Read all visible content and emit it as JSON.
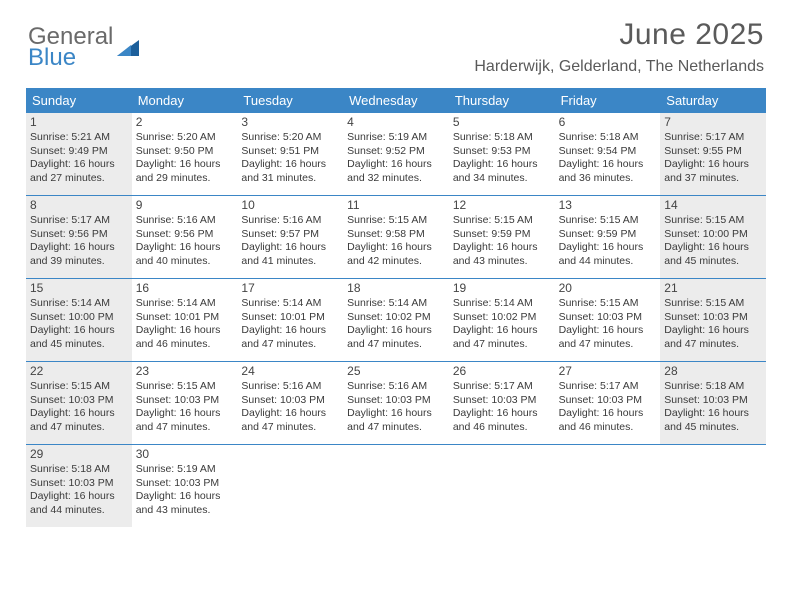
{
  "logo": {
    "general": "General",
    "blue": "Blue"
  },
  "title": "June 2025",
  "location": "Harderwijk, Gelderland, The Netherlands",
  "colors": {
    "header_bg": "#3b86c6",
    "header_text": "#ffffff",
    "shade_bg": "#ececec",
    "border": "#3b86c6",
    "logo_gray": "#6a6a6a",
    "logo_blue": "#3b86c6",
    "text": "#3a3a3a"
  },
  "typography": {
    "title_fontsize": 30,
    "location_fontsize": 16,
    "dayheader_fontsize": 13,
    "cell_fontsize": 10.5,
    "daynum_fontsize": 12
  },
  "dayNames": [
    "Sunday",
    "Monday",
    "Tuesday",
    "Wednesday",
    "Thursday",
    "Friday",
    "Saturday"
  ],
  "weeks": [
    [
      {
        "num": "1",
        "shade": true,
        "sunrise": "Sunrise: 5:21 AM",
        "sunset": "Sunset: 9:49 PM",
        "day1": "Daylight: 16 hours",
        "day2": "and 27 minutes."
      },
      {
        "num": "2",
        "shade": false,
        "sunrise": "Sunrise: 5:20 AM",
        "sunset": "Sunset: 9:50 PM",
        "day1": "Daylight: 16 hours",
        "day2": "and 29 minutes."
      },
      {
        "num": "3",
        "shade": false,
        "sunrise": "Sunrise: 5:20 AM",
        "sunset": "Sunset: 9:51 PM",
        "day1": "Daylight: 16 hours",
        "day2": "and 31 minutes."
      },
      {
        "num": "4",
        "shade": false,
        "sunrise": "Sunrise: 5:19 AM",
        "sunset": "Sunset: 9:52 PM",
        "day1": "Daylight: 16 hours",
        "day2": "and 32 minutes."
      },
      {
        "num": "5",
        "shade": false,
        "sunrise": "Sunrise: 5:18 AM",
        "sunset": "Sunset: 9:53 PM",
        "day1": "Daylight: 16 hours",
        "day2": "and 34 minutes."
      },
      {
        "num": "6",
        "shade": false,
        "sunrise": "Sunrise: 5:18 AM",
        "sunset": "Sunset: 9:54 PM",
        "day1": "Daylight: 16 hours",
        "day2": "and 36 minutes."
      },
      {
        "num": "7",
        "shade": true,
        "sunrise": "Sunrise: 5:17 AM",
        "sunset": "Sunset: 9:55 PM",
        "day1": "Daylight: 16 hours",
        "day2": "and 37 minutes."
      }
    ],
    [
      {
        "num": "8",
        "shade": true,
        "sunrise": "Sunrise: 5:17 AM",
        "sunset": "Sunset: 9:56 PM",
        "day1": "Daylight: 16 hours",
        "day2": "and 39 minutes."
      },
      {
        "num": "9",
        "shade": false,
        "sunrise": "Sunrise: 5:16 AM",
        "sunset": "Sunset: 9:56 PM",
        "day1": "Daylight: 16 hours",
        "day2": "and 40 minutes."
      },
      {
        "num": "10",
        "shade": false,
        "sunrise": "Sunrise: 5:16 AM",
        "sunset": "Sunset: 9:57 PM",
        "day1": "Daylight: 16 hours",
        "day2": "and 41 minutes."
      },
      {
        "num": "11",
        "shade": false,
        "sunrise": "Sunrise: 5:15 AM",
        "sunset": "Sunset: 9:58 PM",
        "day1": "Daylight: 16 hours",
        "day2": "and 42 minutes."
      },
      {
        "num": "12",
        "shade": false,
        "sunrise": "Sunrise: 5:15 AM",
        "sunset": "Sunset: 9:59 PM",
        "day1": "Daylight: 16 hours",
        "day2": "and 43 minutes."
      },
      {
        "num": "13",
        "shade": false,
        "sunrise": "Sunrise: 5:15 AM",
        "sunset": "Sunset: 9:59 PM",
        "day1": "Daylight: 16 hours",
        "day2": "and 44 minutes."
      },
      {
        "num": "14",
        "shade": true,
        "sunrise": "Sunrise: 5:15 AM",
        "sunset": "Sunset: 10:00 PM",
        "day1": "Daylight: 16 hours",
        "day2": "and 45 minutes."
      }
    ],
    [
      {
        "num": "15",
        "shade": true,
        "sunrise": "Sunrise: 5:14 AM",
        "sunset": "Sunset: 10:00 PM",
        "day1": "Daylight: 16 hours",
        "day2": "and 45 minutes."
      },
      {
        "num": "16",
        "shade": false,
        "sunrise": "Sunrise: 5:14 AM",
        "sunset": "Sunset: 10:01 PM",
        "day1": "Daylight: 16 hours",
        "day2": "and 46 minutes."
      },
      {
        "num": "17",
        "shade": false,
        "sunrise": "Sunrise: 5:14 AM",
        "sunset": "Sunset: 10:01 PM",
        "day1": "Daylight: 16 hours",
        "day2": "and 47 minutes."
      },
      {
        "num": "18",
        "shade": false,
        "sunrise": "Sunrise: 5:14 AM",
        "sunset": "Sunset: 10:02 PM",
        "day1": "Daylight: 16 hours",
        "day2": "and 47 minutes."
      },
      {
        "num": "19",
        "shade": false,
        "sunrise": "Sunrise: 5:14 AM",
        "sunset": "Sunset: 10:02 PM",
        "day1": "Daylight: 16 hours",
        "day2": "and 47 minutes."
      },
      {
        "num": "20",
        "shade": false,
        "sunrise": "Sunrise: 5:15 AM",
        "sunset": "Sunset: 10:03 PM",
        "day1": "Daylight: 16 hours",
        "day2": "and 47 minutes."
      },
      {
        "num": "21",
        "shade": true,
        "sunrise": "Sunrise: 5:15 AM",
        "sunset": "Sunset: 10:03 PM",
        "day1": "Daylight: 16 hours",
        "day2": "and 47 minutes."
      }
    ],
    [
      {
        "num": "22",
        "shade": true,
        "sunrise": "Sunrise: 5:15 AM",
        "sunset": "Sunset: 10:03 PM",
        "day1": "Daylight: 16 hours",
        "day2": "and 47 minutes."
      },
      {
        "num": "23",
        "shade": false,
        "sunrise": "Sunrise: 5:15 AM",
        "sunset": "Sunset: 10:03 PM",
        "day1": "Daylight: 16 hours",
        "day2": "and 47 minutes."
      },
      {
        "num": "24",
        "shade": false,
        "sunrise": "Sunrise: 5:16 AM",
        "sunset": "Sunset: 10:03 PM",
        "day1": "Daylight: 16 hours",
        "day2": "and 47 minutes."
      },
      {
        "num": "25",
        "shade": false,
        "sunrise": "Sunrise: 5:16 AM",
        "sunset": "Sunset: 10:03 PM",
        "day1": "Daylight: 16 hours",
        "day2": "and 47 minutes."
      },
      {
        "num": "26",
        "shade": false,
        "sunrise": "Sunrise: 5:17 AM",
        "sunset": "Sunset: 10:03 PM",
        "day1": "Daylight: 16 hours",
        "day2": "and 46 minutes."
      },
      {
        "num": "27",
        "shade": false,
        "sunrise": "Sunrise: 5:17 AM",
        "sunset": "Sunset: 10:03 PM",
        "day1": "Daylight: 16 hours",
        "day2": "and 46 minutes."
      },
      {
        "num": "28",
        "shade": true,
        "sunrise": "Sunrise: 5:18 AM",
        "sunset": "Sunset: 10:03 PM",
        "day1": "Daylight: 16 hours",
        "day2": "and 45 minutes."
      }
    ],
    [
      {
        "num": "29",
        "shade": true,
        "sunrise": "Sunrise: 5:18 AM",
        "sunset": "Sunset: 10:03 PM",
        "day1": "Daylight: 16 hours",
        "day2": "and 44 minutes."
      },
      {
        "num": "30",
        "shade": false,
        "sunrise": "Sunrise: 5:19 AM",
        "sunset": "Sunset: 10:03 PM",
        "day1": "Daylight: 16 hours",
        "day2": "and 43 minutes."
      },
      {
        "empty": true
      },
      {
        "empty": true
      },
      {
        "empty": true
      },
      {
        "empty": true
      },
      {
        "empty": true
      }
    ]
  ]
}
